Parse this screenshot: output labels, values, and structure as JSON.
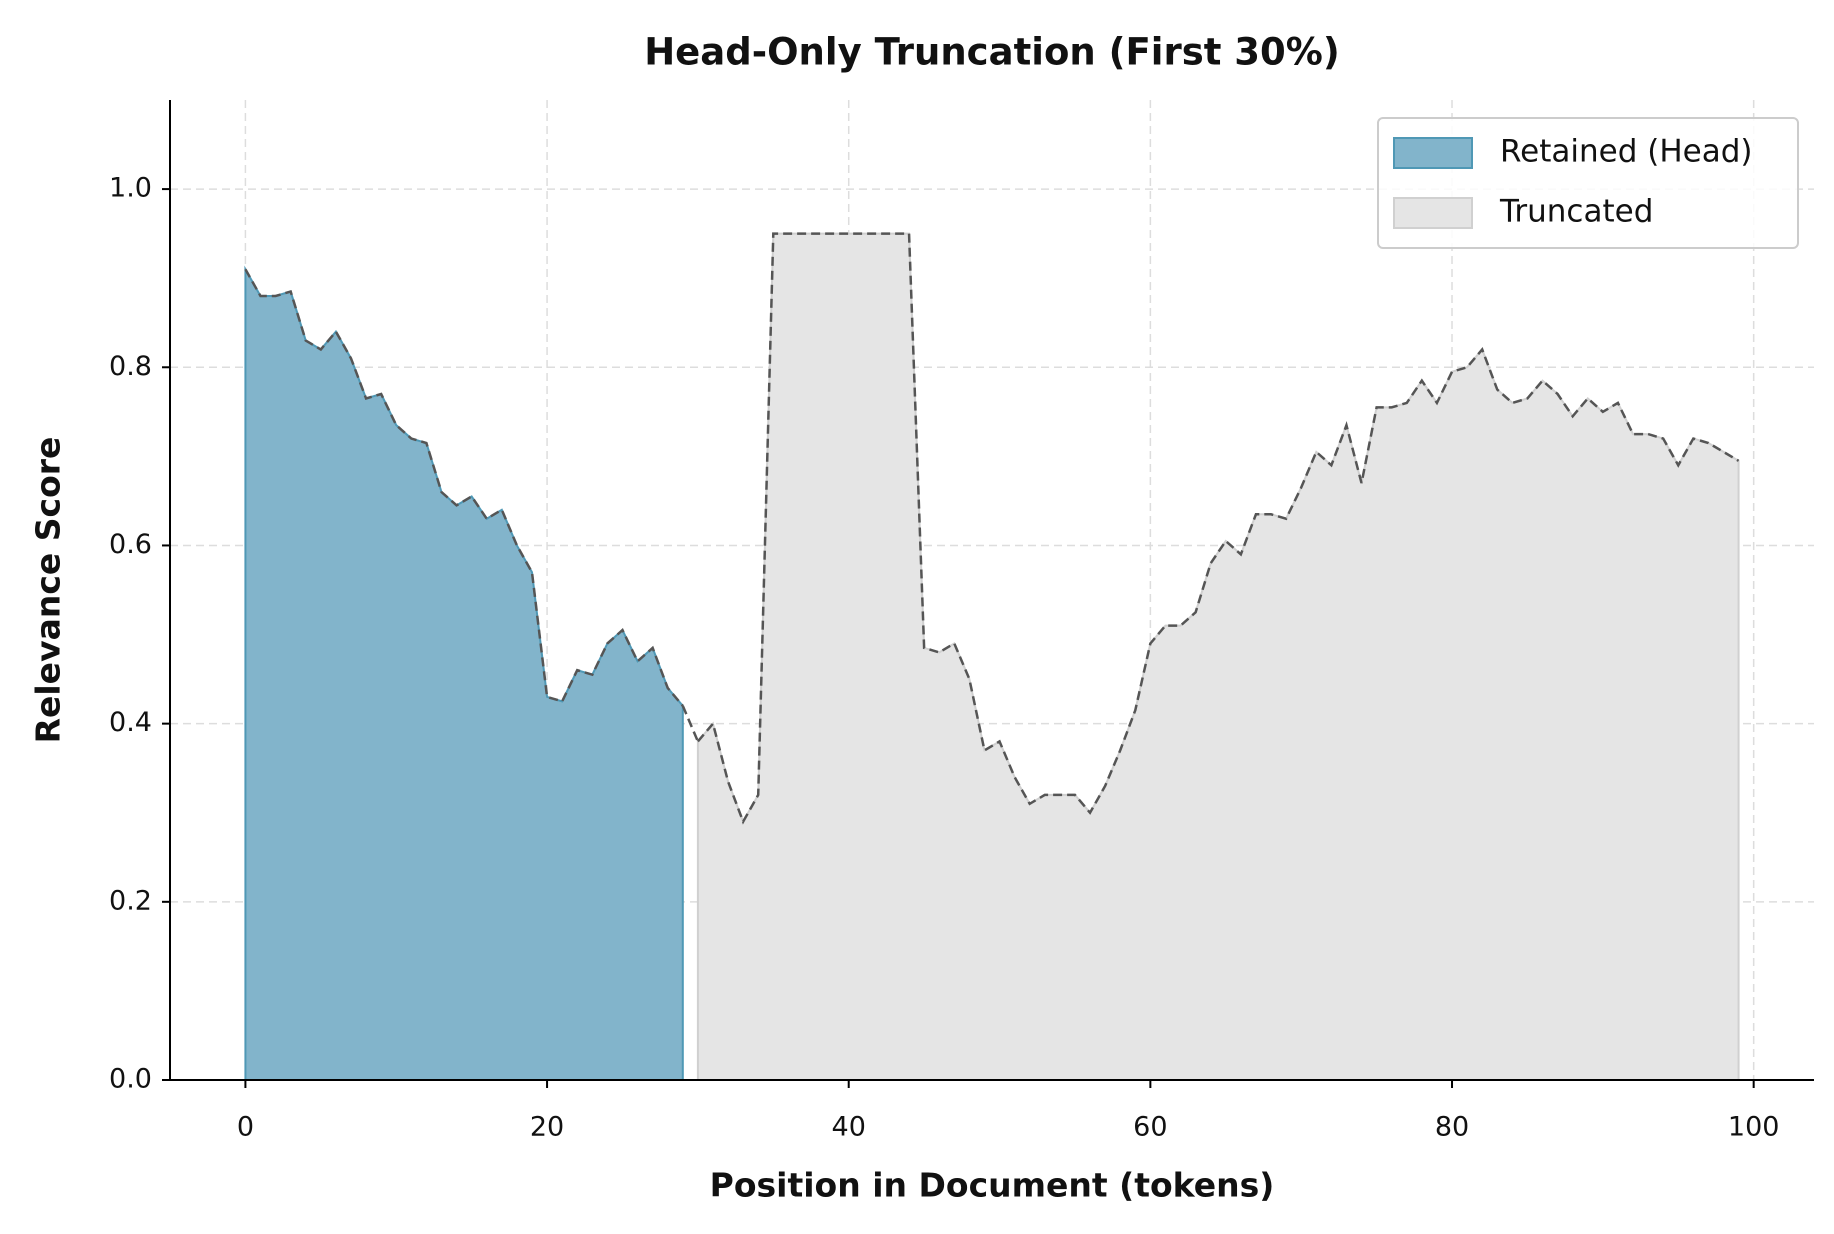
{
  "chart_data": {
    "type": "area",
    "title": "Head-Only Truncation (First 30%)",
    "xlabel": "Position in Document (tokens)",
    "ylabel": "Relevance Score",
    "xlim": [
      -5,
      104
    ],
    "ylim": [
      0,
      1.1
    ],
    "xticks": [
      0,
      20,
      40,
      60,
      80,
      100
    ],
    "yticks": [
      {
        "value": 0,
        "label": "0.0"
      },
      0.2,
      0.4,
      0.6,
      0.8,
      {
        "value": 1,
        "label": "1.0"
      }
    ],
    "grid": true,
    "legend": "upper right",
    "series": [
      {
        "name": "Retained (Head)",
        "color": "#82b4cb",
        "edge_color": "#4f98b5",
        "x": [
          0,
          1,
          2,
          3,
          4,
          5,
          6,
          7,
          8,
          9,
          10,
          11,
          12,
          13,
          14,
          15,
          16,
          17,
          18,
          19,
          20,
          21,
          22,
          23,
          24,
          25,
          26,
          27,
          28,
          29
        ],
        "values": [
          0.91,
          0.88,
          0.88,
          0.885,
          0.83,
          0.82,
          0.84,
          0.81,
          0.765,
          0.77,
          0.735,
          0.72,
          0.715,
          0.66,
          0.645,
          0.655,
          0.63,
          0.64,
          0.6,
          0.57,
          0.43,
          0.425,
          0.46,
          0.455,
          0.49,
          0.505,
          0.47,
          0.485,
          0.44,
          0.42
        ]
      },
      {
        "name": "Truncated",
        "color": "#e5e5e5",
        "edge_color": "#d0d0d0",
        "x": [
          30,
          31,
          32,
          33,
          34,
          35,
          36,
          37,
          38,
          39,
          40,
          41,
          42,
          43,
          44,
          45,
          46,
          47,
          48,
          49,
          50,
          51,
          52,
          53,
          54,
          55,
          56,
          57,
          58,
          59,
          60,
          61,
          62,
          63,
          64,
          65,
          66,
          67,
          68,
          69,
          70,
          71,
          72,
          73,
          74,
          75,
          76,
          77,
          78,
          79,
          80,
          81,
          82,
          83,
          84,
          85,
          86,
          87,
          88,
          89,
          90,
          91,
          92,
          93,
          94,
          95,
          96,
          97,
          98,
          99
        ],
        "values": [
          0.38,
          0.4,
          0.335,
          0.29,
          0.32,
          0.95,
          0.95,
          0.95,
          0.95,
          0.95,
          0.95,
          0.95,
          0.95,
          0.95,
          0.95,
          0.485,
          0.48,
          0.49,
          0.45,
          0.37,
          0.38,
          0.34,
          0.31,
          0.32,
          0.32,
          0.32,
          0.3,
          0.33,
          0.37,
          0.415,
          0.49,
          0.51,
          0.51,
          0.525,
          0.58,
          0.605,
          0.59,
          0.635,
          0.635,
          0.63,
          0.665,
          0.705,
          0.69,
          0.735,
          0.67,
          0.755,
          0.755,
          0.76,
          0.785,
          0.76,
          0.795,
          0.8,
          0.82,
          0.775,
          0.76,
          0.765,
          0.785,
          0.77,
          0.745,
          0.765,
          0.75,
          0.76,
          0.725,
          0.725,
          0.72,
          0.69,
          0.72,
          0.715,
          0.705,
          0.695
        ]
      }
    ],
    "line_color": "#555555"
  }
}
